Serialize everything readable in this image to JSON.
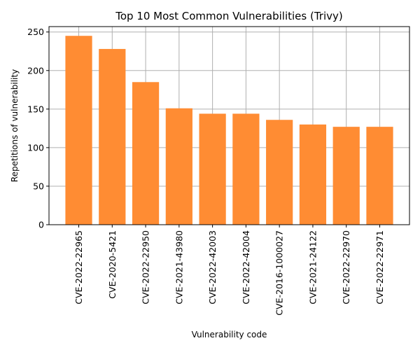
{
  "chart_data": {
    "type": "bar",
    "title": "Top 10 Most Common Vulnerabilities (Trivy)",
    "xlabel": "Vulnerability code",
    "ylabel": "Repetitions of vulnerability",
    "categories": [
      "CVE-2022-22965",
      "CVE-2020-5421",
      "CVE-2022-22950",
      "CVE-2021-43980",
      "CVE-2022-42003",
      "CVE-2022-42004",
      "CVE-2016-1000027",
      "CVE-2021-24122",
      "CVE-2022-22970",
      "CVE-2022-22971"
    ],
    "values": [
      245,
      228,
      185,
      151,
      144,
      144,
      136,
      130,
      127,
      127
    ],
    "ylim": [
      0,
      257
    ],
    "yticks": [
      0,
      50,
      100,
      150,
      200,
      250
    ],
    "grid": true,
    "bar_color": "#ff8c33",
    "grid_color": "#b0b0b0"
  }
}
